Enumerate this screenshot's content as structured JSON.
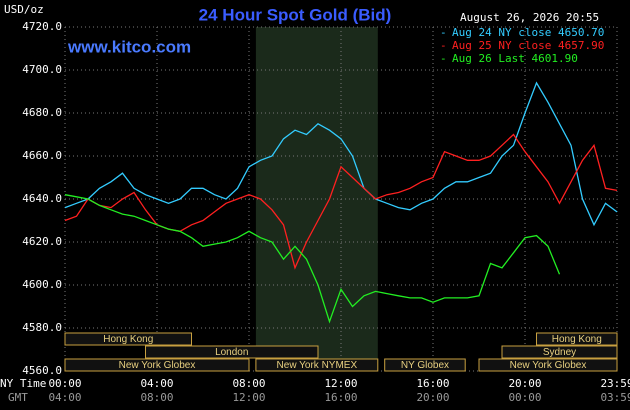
{
  "chart_data": {
    "type": "line",
    "title": "24 Hour Spot Gold (Bid)",
    "unit_label": "USD/oz",
    "timestamp": "August 26, 2026 20:55",
    "watermark": "www.kitco.com",
    "x_row_labels": [
      "NY Time",
      "GMT"
    ],
    "x": [
      0,
      0.5,
      1,
      1.5,
      2,
      2.5,
      3,
      3.5,
      4,
      4.5,
      5,
      5.5,
      6,
      6.5,
      7,
      7.5,
      8,
      8.5,
      9,
      9.5,
      10,
      10.5,
      11,
      11.5,
      12,
      12.5,
      13,
      13.5,
      14,
      14.5,
      15,
      15.5,
      16,
      16.5,
      17,
      17.5,
      18,
      18.5,
      19,
      19.5,
      20,
      20.5,
      21,
      21.5,
      22,
      22.5,
      23,
      23.5,
      24
    ],
    "series": [
      {
        "name": "Aug 24 NY close 4650.70",
        "color": "#33ccff",
        "values": [
          4636,
          4638,
          4640,
          4645,
          4648,
          4652,
          4645,
          4642,
          4640,
          4638,
          4640,
          4645,
          4645,
          4642,
          4640,
          4645,
          4655,
          4658,
          4660,
          4668,
          4672,
          4670,
          4675,
          4672,
          4668,
          4660,
          4645,
          4640,
          4638,
          4636,
          4635,
          4638,
          4640,
          4645,
          4648,
          4648,
          4650,
          4652,
          4660,
          4665,
          4680,
          4694,
          4685,
          4675,
          4665,
          4640,
          4628,
          4638,
          4634
        ]
      },
      {
        "name": "Aug 25 NY close 4657.90",
        "color": "#ff2020",
        "values": [
          4630,
          4632,
          4640,
          4637,
          4636,
          4640,
          4643,
          4635,
          4628,
          4626,
          4625,
          4628,
          4630,
          4634,
          4638,
          4640,
          4642,
          4640,
          4635,
          4628,
          4608,
          4620,
          4630,
          4640,
          4655,
          4650,
          4645,
          4640,
          4642,
          4643,
          4645,
          4648,
          4650,
          4662,
          4660,
          4658,
          4658,
          4660,
          4665,
          4670,
          4662,
          4655,
          4648,
          4638,
          4648,
          4658,
          4665,
          4645,
          4644
        ]
      },
      {
        "name": "Aug 26 Last 4601.90",
        "color": "#22ee22",
        "values": [
          4642,
          4641,
          4640,
          4637,
          4635,
          4633,
          4632,
          4630,
          4628,
          4626,
          4625,
          4622,
          4618,
          4619,
          4620,
          4622,
          4625,
          4622,
          4620,
          4612,
          4618,
          4612,
          4600,
          4583,
          4598,
          4590,
          4595,
          4597,
          4596,
          4595,
          4594,
          4594,
          4592,
          4594,
          4594,
          4594,
          4595,
          4610,
          4608,
          4615,
          4622,
          4623,
          4618,
          4605,
          null,
          null,
          null,
          null,
          null
        ]
      }
    ],
    "xlim": [
      0,
      24
    ],
    "xticks": [
      {
        "value": 0,
        "label": "00:00"
      },
      {
        "value": 4,
        "label": "04:00"
      },
      {
        "value": 8,
        "label": "08:00"
      },
      {
        "value": 12,
        "label": "12:00"
      },
      {
        "value": 16,
        "label": "16:00"
      },
      {
        "value": 20,
        "label": "20:00"
      },
      {
        "value": 24,
        "label": "23:59"
      }
    ],
    "x2ticks": [
      {
        "value": 0,
        "label": "04:00"
      },
      {
        "value": 4,
        "label": "08:00"
      },
      {
        "value": 8,
        "label": "12:00"
      },
      {
        "value": 12,
        "label": "16:00"
      },
      {
        "value": 16,
        "label": "20:00"
      },
      {
        "value": 20,
        "label": "00:00"
      },
      {
        "value": 24,
        "label": "03:59"
      }
    ],
    "ylim": [
      4560,
      4720
    ],
    "yticks": [
      {
        "value": 4560,
        "label": "4560.0"
      },
      {
        "value": 4580,
        "label": "4580.0"
      },
      {
        "value": 4600,
        "label": "4600.0"
      },
      {
        "value": 4620,
        "label": "4620.0"
      },
      {
        "value": 4640,
        "label": "4640.0"
      },
      {
        "value": 4660,
        "label": "4660.0"
      },
      {
        "value": 4680,
        "label": "4680.0"
      },
      {
        "value": 4700,
        "label": "4700.0"
      },
      {
        "value": 4720,
        "label": "4720.0"
      }
    ],
    "grid": true,
    "highlight": {
      "start": 8.3,
      "end": 13.6
    },
    "sessions": [
      {
        "label": "Hong Kong",
        "row": 0,
        "start": 0,
        "end": 5.5
      },
      {
        "label": "Hong Kong",
        "row": 0,
        "start": 20.5,
        "end": 24
      },
      {
        "label": "London",
        "row": 1,
        "start": 3.5,
        "end": 11
      },
      {
        "label": "Sydney",
        "row": 1,
        "start": 19,
        "end": 24
      },
      {
        "label": "New York Globex",
        "row": 2,
        "start": 0,
        "end": 8
      },
      {
        "label": "New York NYMEX",
        "row": 2,
        "start": 8.3,
        "end": 13.6
      },
      {
        "label": "NY Globex",
        "row": 2,
        "start": 13.9,
        "end": 17.4
      },
      {
        "label": "New York Globex",
        "row": 2,
        "start": 18,
        "end": 24
      }
    ]
  }
}
